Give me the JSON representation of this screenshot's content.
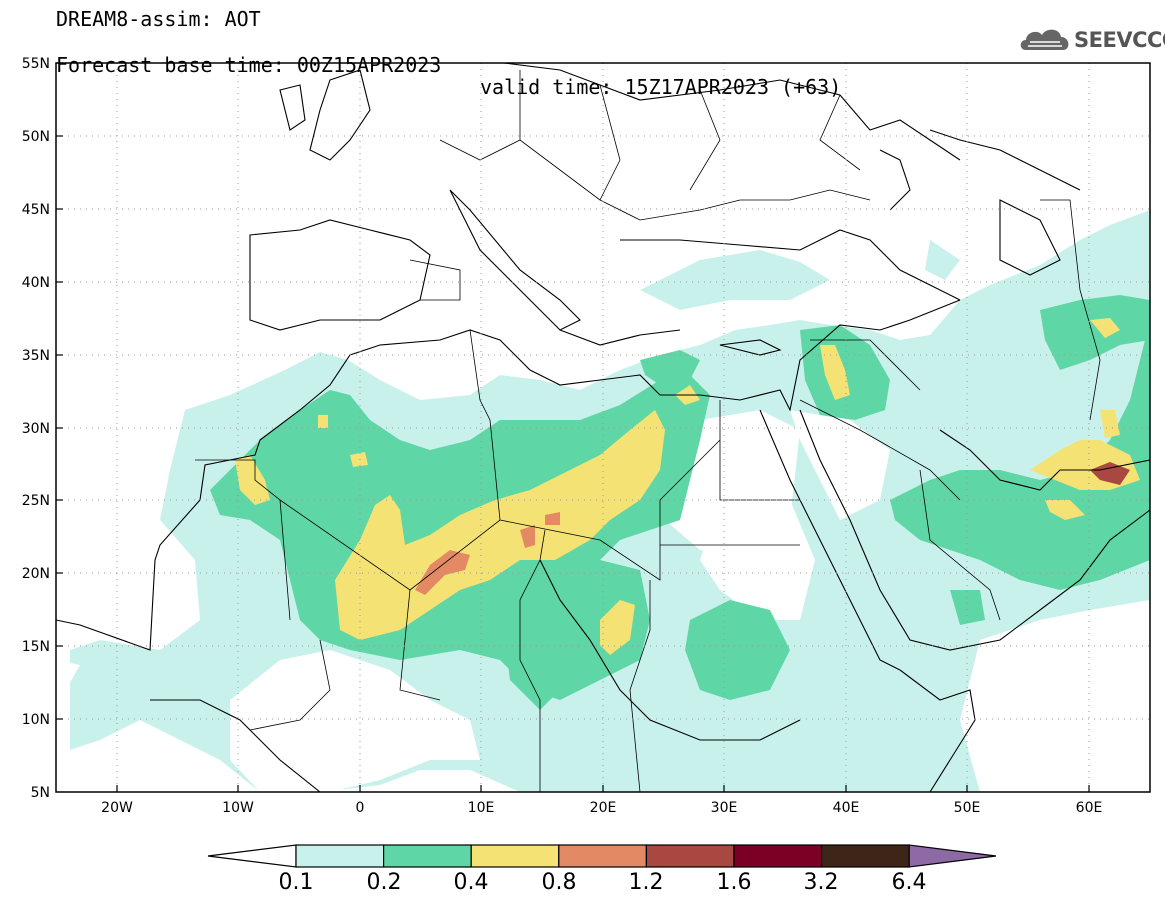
{
  "title": {
    "line1": "DREAM8-assim: AOT",
    "base": "Forecast base time: 00Z15APR2023",
    "valid": "valid time: 15Z17APR2023 (+63)"
  },
  "logo": {
    "text": "SEEVCCC",
    "icon": "cloud-icon"
  },
  "map": {
    "lat_labels": [
      "55N",
      "50N",
      "45N",
      "40N",
      "35N",
      "30N",
      "25N",
      "20N",
      "15N",
      "10N",
      "5N"
    ],
    "lon_labels": [
      "20W",
      "10W",
      "0",
      "10E",
      "20E",
      "30E",
      "40E",
      "50E",
      "60E"
    ],
    "lat_range": [
      5,
      55
    ],
    "lon_range": [
      -25,
      65
    ],
    "gridlines": "dotted",
    "field": "aerosol optical thickness"
  },
  "colorbar": {
    "levels": [
      "0.1",
      "0.2",
      "0.4",
      "0.8",
      "1.2",
      "1.6",
      "3.2",
      "6.4"
    ],
    "colors": [
      "#ffffff",
      "#c9f1ec",
      "#5fd6a5",
      "#f4e374",
      "#e38a64",
      "#a84840",
      "#7a0026",
      "#3d2617",
      "#8d6aa6"
    ]
  }
}
